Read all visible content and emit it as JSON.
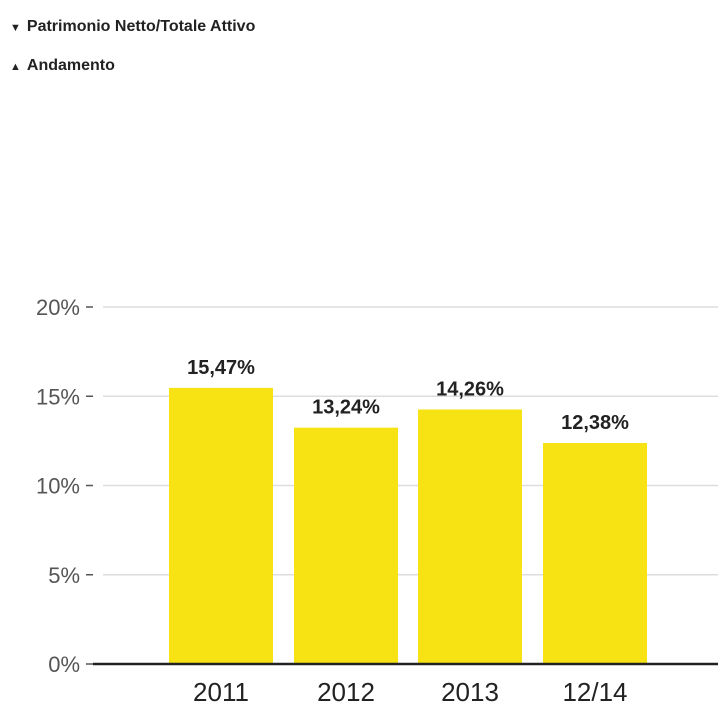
{
  "header": {
    "line1": {
      "marker": "▼",
      "text": "Patrimonio Netto/Totale Attivo"
    },
    "line2": {
      "marker": "▲",
      "text": "Andamento"
    }
  },
  "colors": {
    "bar": "#F7E214",
    "grid": "#DDDDDD",
    "axis": "#222222",
    "tick_text": "#555555",
    "label_text": "#222222"
  },
  "chart_data": {
    "type": "bar",
    "categories": [
      "2011",
      "2012",
      "2013",
      "12/14"
    ],
    "values": [
      15.47,
      13.24,
      14.26,
      12.38
    ],
    "data_labels": [
      "15,47%",
      "13,24%",
      "14,26%",
      "12,38%"
    ],
    "y_ticks": [
      0,
      5,
      10,
      15,
      20
    ],
    "y_tick_labels": [
      "0%",
      "5%",
      "10%",
      "15%",
      "20%"
    ],
    "ylim": [
      0,
      20
    ],
    "grid": true,
    "legend": "none"
  }
}
